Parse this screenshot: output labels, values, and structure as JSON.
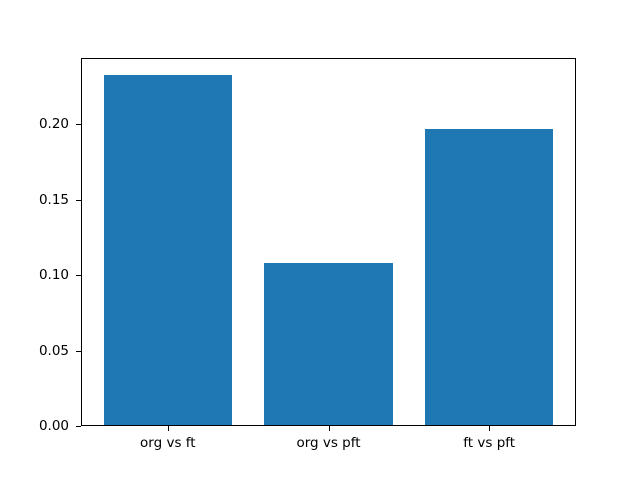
{
  "chart_data": {
    "type": "bar",
    "categories": [
      "org vs ft",
      "org vs pft",
      "ft vs pft"
    ],
    "values": [
      0.233,
      0.108,
      0.197
    ],
    "yticks": [
      0.0,
      0.05,
      0.1,
      0.15,
      0.2
    ],
    "ytick_labels": [
      "0.00",
      "0.05",
      "0.10",
      "0.15",
      "0.20"
    ],
    "ylim": [
      0,
      0.244
    ],
    "xlim": [
      -0.54,
      2.54
    ],
    "bar_width_fraction": 0.8,
    "bar_color": "#1f77b4",
    "spine_color": "#000000",
    "background_color": "#ffffff",
    "grid": false,
    "legend": false,
    "title": "",
    "xlabel": "",
    "ylabel": ""
  }
}
